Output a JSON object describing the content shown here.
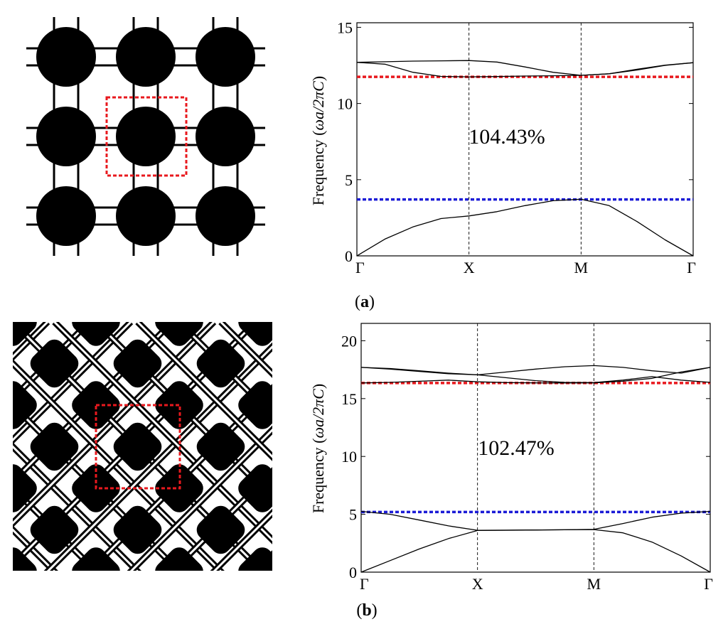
{
  "figure": {
    "panels": [
      {
        "caption_letter": "a",
        "caption_open": "(",
        "caption_close": ")",
        "structure": "circular-inclusions-lattice"
      },
      {
        "caption_letter": "b",
        "caption_open": "(",
        "caption_close": ")",
        "structure": "rotated-square-inclusions-lattice"
      }
    ]
  },
  "chart_data": [
    {
      "type": "line",
      "ylabel_prefix": "Frequency (",
      "ylabel_math": "ωa/2πC",
      "ylabel_suffix": ")",
      "ylim": [
        0,
        15.3
      ],
      "yticks": [
        0,
        5,
        10,
        15
      ],
      "xlim": [
        0,
        3
      ],
      "xtick_positions": [
        0,
        1,
        2,
        3
      ],
      "xtick_labels": [
        "Γ",
        "X",
        "M",
        "Γ"
      ],
      "annotation": "104.43%",
      "colors": {
        "upper_gap_edge": "#e8191e",
        "lower_gap_edge": "#1b1bd6",
        "bands": "#000000"
      },
      "gap_edges": {
        "upper": 11.75,
        "lower": 3.7
      },
      "series": [
        {
          "x": [
            0,
            0.25,
            0.5,
            0.75,
            1,
            1.25,
            1.5,
            1.75,
            2,
            2.25,
            2.5,
            2.75,
            3
          ],
          "y": [
            0,
            1.1,
            1.9,
            2.45,
            2.62,
            2.9,
            3.3,
            3.62,
            3.72,
            3.3,
            2.25,
            1.05,
            0
          ]
        },
        {
          "x": [
            0,
            0.25,
            0.5,
            0.75,
            1,
            1.25,
            1.5,
            1.75,
            2,
            2.25,
            2.5,
            2.75,
            3
          ],
          "y": [
            12.7,
            12.58,
            12.05,
            11.78,
            11.75,
            11.77,
            11.8,
            11.82,
            11.85,
            11.95,
            12.2,
            12.5,
            12.68
          ]
        },
        {
          "x": [
            0,
            0.25,
            0.5,
            0.75,
            1,
            1.25,
            1.5,
            1.75,
            2,
            2.25,
            2.5,
            2.75,
            3
          ],
          "y": [
            12.7,
            12.74,
            12.78,
            12.8,
            12.82,
            12.72,
            12.4,
            12.05,
            11.85,
            11.95,
            12.25,
            12.52,
            12.68
          ]
        }
      ]
    },
    {
      "type": "line",
      "ylabel_prefix": "Frequency (",
      "ylabel_math": "ωa/2πC",
      "ylabel_suffix": ")",
      "ylim": [
        0,
        21.5
      ],
      "yticks": [
        0,
        5,
        10,
        15,
        20
      ],
      "xlim": [
        0,
        3
      ],
      "xtick_positions": [
        0,
        1,
        2,
        3
      ],
      "xtick_labels": [
        "Γ",
        "X",
        "M",
        "Γ"
      ],
      "annotation": "102.47%",
      "colors": {
        "upper_gap_edge": "#e8191e",
        "lower_gap_edge": "#1b1bd6",
        "bands": "#000000"
      },
      "gap_edges": {
        "upper": 16.35,
        "lower": 5.2
      },
      "series": [
        {
          "x": [
            0,
            0.25,
            0.5,
            0.75,
            1,
            1.25,
            1.5,
            1.75,
            2,
            2.25,
            2.5,
            2.75,
            3
          ],
          "y": [
            0,
            1.0,
            2.0,
            2.9,
            3.6,
            3.62,
            3.64,
            3.66,
            3.68,
            3.4,
            2.6,
            1.4,
            0
          ]
        },
        {
          "x": [
            0,
            0.25,
            0.5,
            0.75,
            1,
            1.25,
            1.5,
            1.75,
            2,
            2.25,
            2.5,
            2.75,
            3
          ],
          "y": [
            5.25,
            5.0,
            4.5,
            4.0,
            3.62,
            3.63,
            3.64,
            3.66,
            3.7,
            4.2,
            4.75,
            5.1,
            5.25
          ]
        },
        {
          "x": [
            0,
            0.25,
            0.5,
            0.75,
            1,
            1.25,
            1.5,
            1.75,
            2,
            2.25,
            2.5,
            2.75,
            3
          ],
          "y": [
            17.7,
            17.6,
            17.4,
            17.2,
            17.05,
            17.3,
            17.55,
            17.75,
            17.85,
            17.7,
            17.4,
            17.2,
            17.7
          ]
        },
        {
          "x": [
            0,
            0.25,
            0.5,
            0.75,
            1,
            1.25,
            1.5,
            1.75,
            2,
            2.25,
            2.5,
            2.75,
            3
          ],
          "y": [
            17.7,
            17.55,
            17.35,
            17.15,
            17.05,
            16.8,
            16.55,
            16.4,
            16.38,
            16.6,
            16.9,
            16.6,
            16.4
          ]
        },
        {
          "x": [
            0,
            0.25,
            0.5,
            0.75,
            1,
            1.25,
            1.5,
            1.75,
            2,
            2.25,
            2.5,
            2.75,
            3
          ],
          "y": [
            16.35,
            16.4,
            16.5,
            16.6,
            16.45,
            16.38,
            16.36,
            16.35,
            16.36,
            16.5,
            16.75,
            17.3,
            17.7
          ]
        }
      ]
    }
  ]
}
